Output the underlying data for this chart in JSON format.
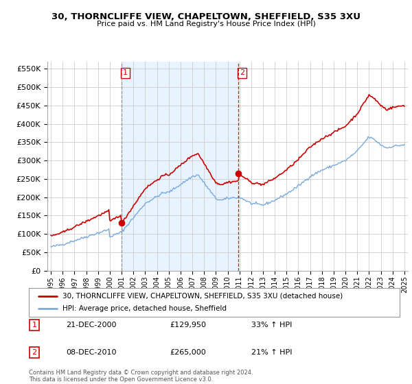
{
  "title": "30, THORNCLIFFE VIEW, CHAPELTOWN, SHEFFIELD, S35 3XU",
  "subtitle": "Price paid vs. HM Land Registry's House Price Index (HPI)",
  "property_label": "30, THORNCLIFFE VIEW, CHAPELTOWN, SHEFFIELD, S35 3XU (detached house)",
  "hpi_label": "HPI: Average price, detached house, Sheffield",
  "footnote": "Contains HM Land Registry data © Crown copyright and database right 2024.\nThis data is licensed under the Open Government Licence v3.0.",
  "transaction1_date": "21-DEC-2000",
  "transaction1_price": "£129,950",
  "transaction1_hpi": "33% ↑ HPI",
  "transaction2_date": "08-DEC-2010",
  "transaction2_price": "£265,000",
  "transaction2_hpi": "21% ↑ HPI",
  "property_color": "#cc0000",
  "hpi_color": "#7aaadd",
  "vline1_color": "#888888",
  "vline2_color": "#cc0000",
  "shade_color": "#ddeeff",
  "ylim": [
    0,
    570000
  ],
  "yticks": [
    0,
    50000,
    100000,
    150000,
    200000,
    250000,
    300000,
    350000,
    400000,
    450000,
    500000,
    550000
  ],
  "background_color": "#ffffff",
  "grid_color": "#cccccc",
  "transaction1_x": 2001.0,
  "transaction2_x": 2010.93,
  "transaction1_y": 129950,
  "transaction2_y": 265000,
  "xlim_left": 1994.7,
  "xlim_right": 2025.3
}
